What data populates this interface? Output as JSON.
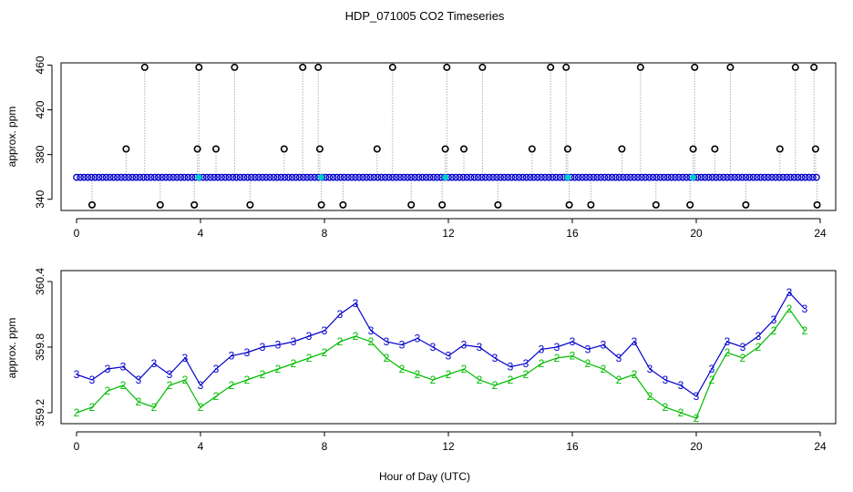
{
  "page": {
    "title": "HDP_071005  CO2 Timeseries",
    "xlabel": "Hour of Day (UTC)"
  },
  "colors": {
    "top_outlier": "#000000",
    "top_main": "#0000cc",
    "top_fill": "#00cccc",
    "series_3": "#0000cc",
    "series_2": "#00bb00",
    "axis": "#000000",
    "grid_line": "#888888"
  },
  "chart_data": [
    {
      "type": "scatter",
      "title": "",
      "xlabel": "",
      "ylabel": "approx. ppm",
      "xlim": [
        -0.5,
        24.5
      ],
      "ylim": [
        330,
        462
      ],
      "x_ticks": [
        0,
        4,
        8,
        12,
        16,
        20,
        24
      ],
      "y_ticks": [
        340,
        380,
        420,
        460
      ],
      "baseline_value": 359.6,
      "outlier_points": [
        {
          "x": 0.5,
          "y": 335
        },
        {
          "x": 1.6,
          "y": 385
        },
        {
          "x": 2.2,
          "y": 458
        },
        {
          "x": 2.7,
          "y": 335
        },
        {
          "x": 3.8,
          "y": 335
        },
        {
          "x": 3.9,
          "y": 385
        },
        {
          "x": 3.95,
          "y": 458
        },
        {
          "x": 4.5,
          "y": 385
        },
        {
          "x": 5.1,
          "y": 458
        },
        {
          "x": 5.6,
          "y": 335
        },
        {
          "x": 6.7,
          "y": 385
        },
        {
          "x": 7.3,
          "y": 458
        },
        {
          "x": 7.8,
          "y": 458
        },
        {
          "x": 7.85,
          "y": 385
        },
        {
          "x": 7.9,
          "y": 335
        },
        {
          "x": 8.6,
          "y": 335
        },
        {
          "x": 9.7,
          "y": 385
        },
        {
          "x": 10.2,
          "y": 458
        },
        {
          "x": 10.8,
          "y": 335
        },
        {
          "x": 11.8,
          "y": 335
        },
        {
          "x": 11.9,
          "y": 385
        },
        {
          "x": 11.95,
          "y": 458
        },
        {
          "x": 12.5,
          "y": 385
        },
        {
          "x": 13.1,
          "y": 458
        },
        {
          "x": 13.6,
          "y": 335
        },
        {
          "x": 14.7,
          "y": 385
        },
        {
          "x": 15.3,
          "y": 458
        },
        {
          "x": 15.8,
          "y": 458
        },
        {
          "x": 15.85,
          "y": 385
        },
        {
          "x": 15.9,
          "y": 335
        },
        {
          "x": 16.6,
          "y": 335
        },
        {
          "x": 17.6,
          "y": 385
        },
        {
          "x": 18.2,
          "y": 458
        },
        {
          "x": 18.7,
          "y": 335
        },
        {
          "x": 19.8,
          "y": 335
        },
        {
          "x": 19.9,
          "y": 385
        },
        {
          "x": 19.95,
          "y": 458
        },
        {
          "x": 20.6,
          "y": 385
        },
        {
          "x": 21.1,
          "y": 458
        },
        {
          "x": 21.6,
          "y": 335
        },
        {
          "x": 22.7,
          "y": 385
        },
        {
          "x": 23.2,
          "y": 458
        },
        {
          "x": 23.8,
          "y": 458
        },
        {
          "x": 23.85,
          "y": 385
        },
        {
          "x": 23.9,
          "y": 335
        }
      ]
    },
    {
      "type": "line",
      "title": "",
      "xlabel": "Hour of Day (UTC)",
      "ylabel": "approx. ppm",
      "xlim": [
        -0.5,
        24.5
      ],
      "ylim": [
        359.1,
        360.5
      ],
      "x_ticks": [
        0,
        4,
        8,
        12,
        16,
        20,
        24
      ],
      "y_ticks": [
        359.2,
        359.8,
        360.4
      ],
      "series": [
        {
          "name": "3",
          "marker": "3",
          "x": [
            0,
            0.5,
            1,
            1.5,
            2,
            2.5,
            3,
            3.5,
            4,
            4.5,
            5,
            5.5,
            6,
            6.5,
            7,
            7.5,
            8,
            8.5,
            9,
            9.5,
            10,
            10.5,
            11,
            11.5,
            12,
            12.5,
            13,
            13.5,
            14,
            14.5,
            15,
            15.5,
            16,
            16.5,
            17,
            17.5,
            18,
            18.5,
            19,
            19.5,
            20,
            20.5,
            21,
            21.5,
            22,
            22.5,
            23,
            23.5
          ],
          "y": [
            359.55,
            359.5,
            359.6,
            359.62,
            359.5,
            359.65,
            359.55,
            359.7,
            359.45,
            359.6,
            359.72,
            359.75,
            359.8,
            359.82,
            359.85,
            359.9,
            359.95,
            360.1,
            360.2,
            359.95,
            359.85,
            359.82,
            359.88,
            359.8,
            359.72,
            359.82,
            359.8,
            359.7,
            359.62,
            359.65,
            359.78,
            359.8,
            359.85,
            359.78,
            359.82,
            359.7,
            359.85,
            359.6,
            359.5,
            359.45,
            359.35,
            359.6,
            359.85,
            359.8,
            359.9,
            360.05,
            360.3,
            360.15
          ]
        },
        {
          "name": "2",
          "marker": "2",
          "x": [
            0,
            0.5,
            1,
            1.5,
            2,
            2.5,
            3,
            3.5,
            4,
            4.5,
            5,
            5.5,
            6,
            6.5,
            7,
            7.5,
            8,
            8.5,
            9,
            9.5,
            10,
            10.5,
            11,
            11.5,
            12,
            12.5,
            13,
            13.5,
            14,
            14.5,
            15,
            15.5,
            16,
            16.5,
            17,
            17.5,
            18,
            18.5,
            19,
            19.5,
            20,
            20.5,
            21,
            21.5,
            22,
            22.5,
            23,
            23.5
          ],
          "y": [
            359.2,
            359.25,
            359.4,
            359.45,
            359.3,
            359.25,
            359.45,
            359.5,
            359.25,
            359.35,
            359.45,
            359.5,
            359.55,
            359.6,
            359.65,
            359.7,
            359.75,
            359.85,
            359.9,
            359.85,
            359.7,
            359.6,
            359.55,
            359.5,
            359.55,
            359.6,
            359.5,
            359.45,
            359.5,
            359.55,
            359.65,
            359.7,
            359.72,
            359.65,
            359.6,
            359.5,
            359.55,
            359.35,
            359.25,
            359.2,
            359.15,
            359.5,
            359.75,
            359.7,
            359.8,
            359.95,
            360.15,
            359.95
          ]
        }
      ]
    }
  ]
}
